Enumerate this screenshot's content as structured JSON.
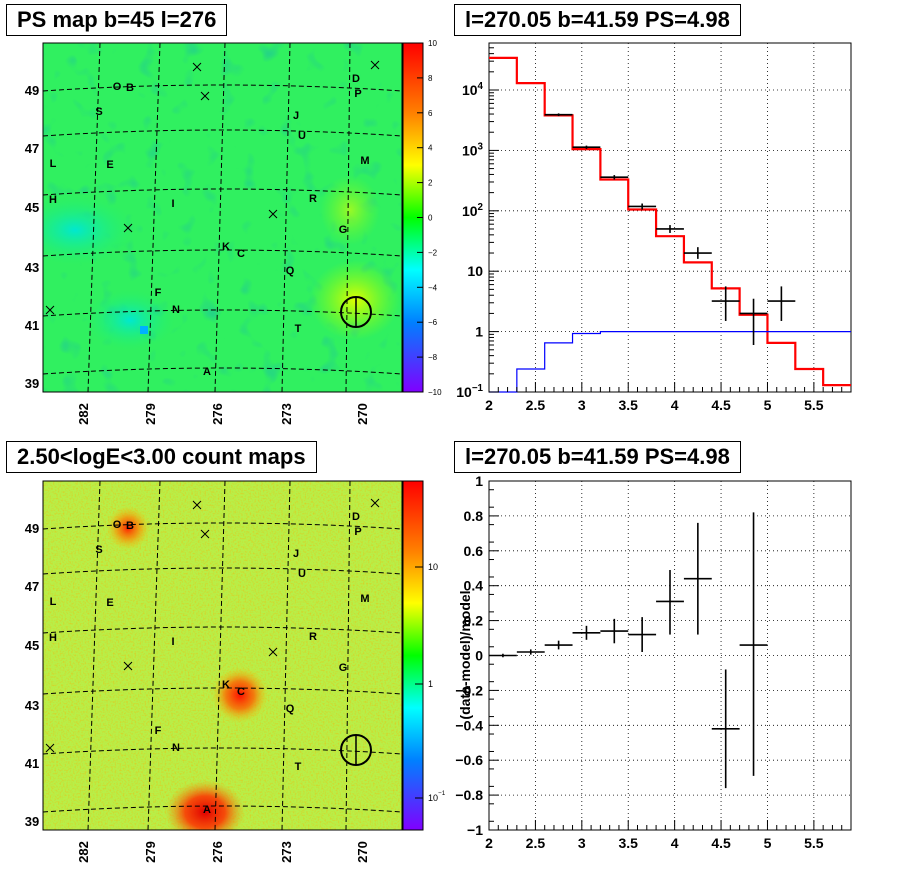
{
  "chart_data": [
    {
      "type": "heatmap",
      "title": "PS map b=45 l=276",
      "x_ticks": [
        "282",
        "279",
        "276",
        "273",
        "270"
      ],
      "y_ticks": [
        "49",
        "47",
        "45",
        "43",
        "41",
        "39"
      ],
      "colorbar_ticks": [
        "10",
        "8",
        "6",
        "4",
        "2",
        "0",
        "-2",
        "-4",
        "-6",
        "-8",
        "-10"
      ],
      "zlim": [
        -10,
        10
      ],
      "source_labels": [
        "O",
        "B",
        "D",
        "P",
        "S",
        "J",
        "U",
        "L",
        "E",
        "M",
        "H",
        "I",
        "R",
        "G",
        "K",
        "C",
        "Q",
        "F",
        "N",
        "T",
        "A"
      ]
    },
    {
      "type": "line",
      "title": "l=270.05 b=41.59 PS=4.98",
      "x_ticks": [
        "2",
        "2.5",
        "3",
        "3.5",
        "4",
        "4.5",
        "5",
        "5.5"
      ],
      "y_ticks": [
        "10^-1",
        "1",
        "10",
        "10^2",
        "10^3",
        "10^4"
      ],
      "xlim": [
        2,
        5.9
      ],
      "ylim": [
        0.1,
        60000
      ],
      "y_scale": "log",
      "grid": true,
      "bin_edges": [
        2,
        2.3,
        2.6,
        2.9,
        3.2,
        3.5,
        3.8,
        4.1,
        4.4,
        4.7,
        5.0,
        5.3,
        5.6,
        5.9
      ],
      "series": [
        {
          "color": "#ff0000",
          "values": [
            34000,
            13000,
            3800,
            1050,
            330,
            105,
            38,
            14,
            5.2,
            1.9,
            0.65,
            0.24,
            0.13
          ]
        },
        {
          "color": "#0000ff",
          "values": [
            0.08,
            0.24,
            0.65,
            0.93,
            1.0,
            1.0,
            1.0,
            1.0,
            1.0,
            1.0,
            1.0,
            1.0,
            1.0
          ]
        },
        {
          "color": "#000000",
          "points": [
            {
              "x": 2.75,
              "y": 3900,
              "ylo": 3700,
              "yhi": 4100
            },
            {
              "x": 3.05,
              "y": 1130,
              "ylo": 1060,
              "yhi": 1200
            },
            {
              "x": 3.35,
              "y": 360,
              "ylo": 330,
              "yhi": 390
            },
            {
              "x": 3.65,
              "y": 118,
              "ylo": 105,
              "yhi": 132
            },
            {
              "x": 3.95,
              "y": 50,
              "ylo": 43,
              "yhi": 58
            },
            {
              "x": 4.25,
              "y": 20,
              "ylo": 16,
              "yhi": 25
            },
            {
              "x": 4.55,
              "y": 3.2,
              "ylo": 1.5,
              "yhi": 5.6
            },
            {
              "x": 4.85,
              "y": 2.0,
              "ylo": 0.6,
              "yhi": 3.5
            },
            {
              "x": 5.15,
              "y": 3.2,
              "ylo": 1.5,
              "yhi": 5.6
            }
          ]
        }
      ]
    },
    {
      "type": "heatmap",
      "title": "2.50<logE<3.00 count maps",
      "x_ticks": [
        "282",
        "279",
        "276",
        "273",
        "270"
      ],
      "y_ticks": [
        "49",
        "47",
        "45",
        "43",
        "41",
        "39"
      ],
      "colorbar_ticks": [
        "10",
        "1",
        "10^-1"
      ],
      "zscale": "log",
      "source_labels": [
        "O",
        "B",
        "D",
        "P",
        "S",
        "J",
        "U",
        "L",
        "E",
        "M",
        "H",
        "I",
        "R",
        "G",
        "K",
        "C",
        "Q",
        "F",
        "N",
        "T",
        "A"
      ]
    },
    {
      "type": "scatter",
      "title": "l=270.05 b=41.59 PS=4.98",
      "ylabel": "(data-model)/model",
      "x_ticks": [
        "2",
        "2.5",
        "3",
        "3.5",
        "4",
        "4.5",
        "5",
        "5.5"
      ],
      "y_ticks": [
        "1",
        "0.8",
        "0.6",
        "0.4",
        "0.2",
        "0",
        "-0.2",
        "-0.4",
        "-0.6",
        "-0.8",
        "-1"
      ],
      "xlim": [
        2,
        5.9
      ],
      "ylim": [
        -1,
        1
      ],
      "grid": true,
      "points": [
        {
          "x": 2.15,
          "xerr": 0.15,
          "y": 0.0,
          "ylo": -0.01,
          "yhi": 0.01
        },
        {
          "x": 2.45,
          "xerr": 0.15,
          "y": 0.02,
          "ylo": 0.005,
          "yhi": 0.035
        },
        {
          "x": 2.75,
          "xerr": 0.15,
          "y": 0.06,
          "ylo": 0.035,
          "yhi": 0.085
        },
        {
          "x": 3.05,
          "xerr": 0.15,
          "y": 0.13,
          "ylo": 0.09,
          "yhi": 0.17
        },
        {
          "x": 3.35,
          "xerr": 0.15,
          "y": 0.14,
          "ylo": 0.07,
          "yhi": 0.21
        },
        {
          "x": 3.65,
          "xerr": 0.15,
          "y": 0.12,
          "ylo": 0.02,
          "yhi": 0.22
        },
        {
          "x": 3.95,
          "xerr": 0.15,
          "y": 0.31,
          "ylo": 0.12,
          "yhi": 0.49
        },
        {
          "x": 4.25,
          "xerr": 0.15,
          "y": 0.44,
          "ylo": 0.12,
          "yhi": 0.76
        },
        {
          "x": 4.55,
          "xerr": 0.15,
          "y": -0.42,
          "ylo": -0.76,
          "yhi": -0.08
        },
        {
          "x": 4.85,
          "xerr": 0.15,
          "y": 0.06,
          "ylo": -0.69,
          "yhi": 0.82
        }
      ]
    }
  ]
}
